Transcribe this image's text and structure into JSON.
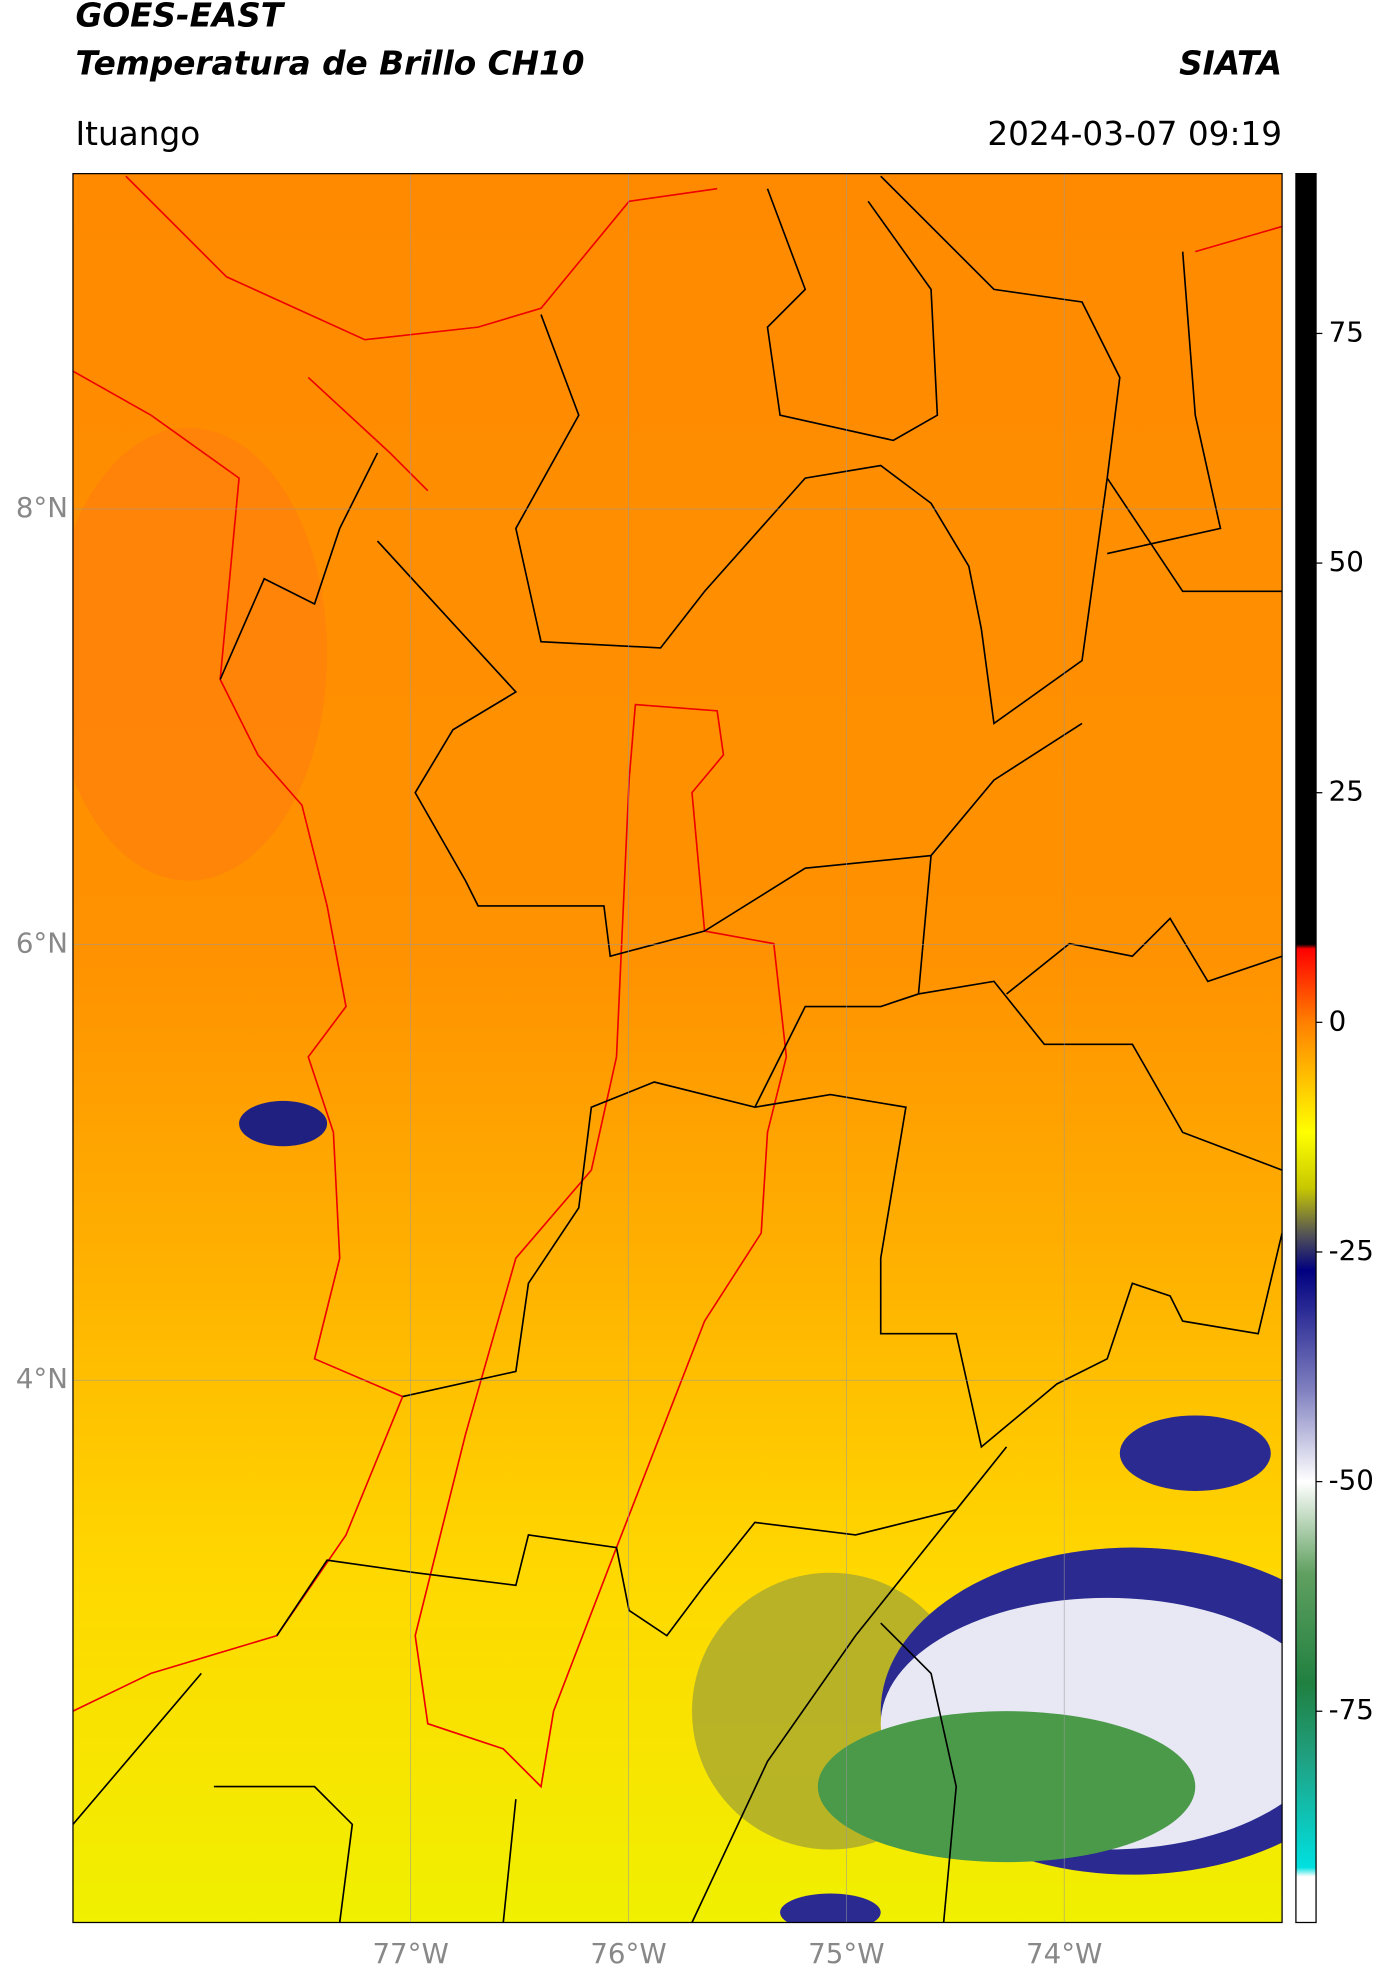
{
  "header": {
    "title": "GOES-EAST",
    "subtitle": "Temperatura de Brillo CH10",
    "source": "SIATA",
    "location": "Ituango",
    "datetime": "2024-03-07 09:19"
  },
  "map": {
    "lon_range": [
      -78.55,
      -73.0
    ],
    "lat_range": [
      1.51,
      9.54
    ],
    "lon_ticks": [
      {
        "value": -77,
        "label": "77°W"
      },
      {
        "value": -76,
        "label": "76°W"
      },
      {
        "value": -75,
        "label": "75°W"
      },
      {
        "value": -74,
        "label": "74°W"
      }
    ],
    "lat_ticks": [
      {
        "value": 8,
        "label": "8°N"
      },
      {
        "value": 6,
        "label": "6°N"
      },
      {
        "value": 4,
        "label": "4°N"
      }
    ],
    "grid": true
  },
  "colorbar": {
    "range": [
      -98,
      92.4
    ],
    "ticks": [
      75,
      50,
      25,
      0,
      -25,
      -50,
      -75
    ],
    "stops": [
      [
        92.4,
        "#000000"
      ],
      [
        8.5,
        "#000000"
      ],
      [
        8,
        "#ff0000"
      ],
      [
        0,
        "#ff8000"
      ],
      [
        -12,
        "#ffff00"
      ],
      [
        -18,
        "#c8c800"
      ],
      [
        -23,
        "#555555"
      ],
      [
        -27,
        "#000080"
      ],
      [
        -40,
        "#8080c0"
      ],
      [
        -50,
        "#ffffff"
      ],
      [
        -60,
        "#60a060"
      ],
      [
        -72,
        "#208040"
      ],
      [
        -80,
        "#20a080"
      ],
      [
        -92,
        "#00e0e0"
      ],
      [
        -93,
        "#ffffff"
      ],
      [
        -98,
        "#ffffff"
      ]
    ]
  }
}
